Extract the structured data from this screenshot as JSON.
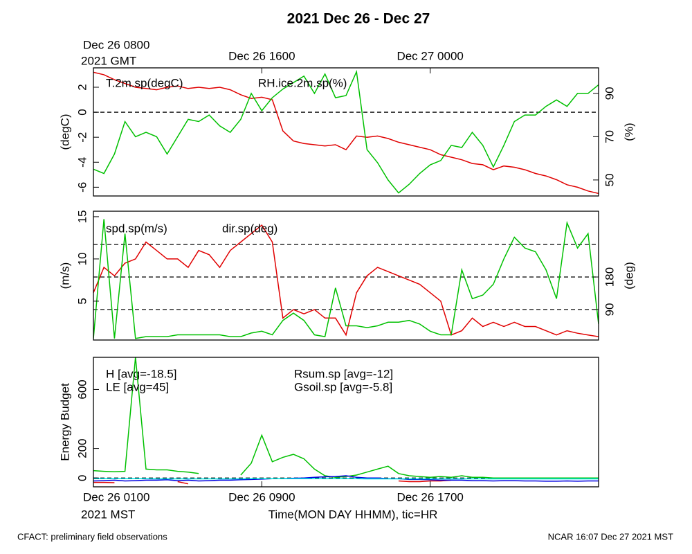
{
  "title": "2021 Dec 26 - Dec 27",
  "footer_left": "CFACT: preliminary field observations",
  "footer_right": "NCAR 16:07 Dec 27 2021 MST",
  "chart_data": [
    {
      "type": "line",
      "x": [
        0,
        0.5,
        1,
        1.5,
        2,
        2.5,
        3,
        3.5,
        4,
        4.5,
        5,
        5.5,
        6,
        6.5,
        7,
        7.5,
        8,
        8.5,
        9,
        9.5,
        10,
        10.5,
        11,
        11.5,
        12,
        12.5,
        13,
        13.5,
        14,
        14.5,
        15,
        15.5,
        16,
        16.5,
        17,
        17.5,
        18,
        18.5,
        19,
        19.5,
        20,
        20.5,
        21,
        21.5,
        22,
        22.5,
        23,
        23.5,
        24
      ],
      "xlim": [
        0,
        24
      ],
      "xticks": [
        {
          "value": 0,
          "label": "Dec 26 0800"
        },
        {
          "value": 8,
          "label": "Dec 26 1600"
        },
        {
          "value": 16,
          "label": "Dec 27 0000"
        }
      ],
      "x_sublabel": "2021 GMT",
      "ylabel": "(degC)",
      "ylim": [
        -6.7,
        3.55
      ],
      "yticks": [
        -6,
        -4,
        -2,
        0,
        2
      ],
      "y2label": "(%)",
      "y2lim": [
        42.6,
        101.8
      ],
      "y2ticks": [
        50,
        70,
        90
      ],
      "ref_lines": [
        0
      ],
      "series": [
        {
          "name": "T.2m.sp(degC)",
          "color": "#e00000",
          "values": [
            3.2,
            3.0,
            2.6,
            2.3,
            2.0,
            1.9,
            1.8,
            2.0,
            2.1,
            1.9,
            2.0,
            1.9,
            2.0,
            1.8,
            1.4,
            1.1,
            1.2,
            1.0,
            -1.5,
            -2.3,
            -2.5,
            -2.6,
            -2.7,
            -2.6,
            -3.0,
            -1.9,
            -2.0,
            -1.9,
            -2.1,
            -2.4,
            -2.6,
            -2.8,
            -3.0,
            -3.4,
            -3.6,
            -3.8,
            -4.1,
            -4.2,
            -4.6,
            -4.3,
            -4.4,
            -4.6,
            -4.9,
            -5.1,
            -5.4,
            -5.8,
            -6.0,
            -6.3,
            -6.5
          ]
        },
        {
          "name": "RH.ice.2m.sp(%)",
          "color": "#00c000",
          "axis": "y2",
          "values": [
            55,
            53,
            62,
            77,
            70,
            72,
            70,
            62,
            70,
            78,
            77,
            80,
            75,
            72,
            78,
            90,
            82,
            88,
            92,
            95,
            98,
            90,
            99,
            88,
            89,
            100,
            64,
            58,
            50,
            44,
            48,
            53,
            57,
            59,
            66,
            65,
            72,
            66,
            56,
            66,
            77,
            80,
            80,
            84,
            87,
            84,
            90,
            90,
            94
          ]
        }
      ]
    },
    {
      "type": "line",
      "x": [
        0,
        0.5,
        1,
        1.5,
        2,
        2.5,
        3,
        3.5,
        4,
        4.5,
        5,
        5.5,
        6,
        6.5,
        7,
        7.5,
        8,
        8.5,
        9,
        9.5,
        10,
        10.5,
        11,
        11.5,
        12,
        12.5,
        13,
        13.5,
        14,
        14.5,
        15,
        15.5,
        16,
        16.5,
        17,
        17.5,
        18,
        18.5,
        19,
        19.5,
        20,
        20.5,
        21,
        21.5,
        22,
        22.5,
        23,
        23.5,
        24
      ],
      "xlim": [
        0,
        24
      ],
      "ylabel": "(m/s)",
      "ylim": [
        0.4,
        15.65
      ],
      "yticks": [
        5,
        10,
        15
      ],
      "y2label": "(deg)",
      "y2lim": [
        5.7,
        362
      ],
      "y2ticks": [
        90,
        180
      ],
      "ref_lines_y2": [
        90,
        180,
        270
      ],
      "series": [
        {
          "name": "spd.sp(m/s)",
          "color": "#e00000",
          "values": [
            6,
            9,
            8,
            9.5,
            10,
            12,
            11,
            10,
            10,
            9,
            11,
            10.5,
            9,
            11,
            12,
            13,
            14,
            12,
            3,
            4,
            3.5,
            4,
            3,
            3,
            1,
            6,
            8,
            9,
            8.5,
            8,
            7.5,
            7,
            6,
            5,
            1,
            1.5,
            3,
            2,
            2.5,
            2,
            2.5,
            2,
            2,
            1.5,
            1,
            1.5,
            1.2,
            1,
            0.8
          ]
        },
        {
          "name": "dir.sp(deg)",
          "color": "#00c000",
          "axis": "y2",
          "values": [
            10,
            340,
            10,
            300,
            10,
            15,
            15,
            15,
            20,
            20,
            20,
            20,
            20,
            15,
            15,
            25,
            30,
            20,
            60,
            80,
            60,
            20,
            15,
            150,
            45,
            45,
            40,
            45,
            55,
            55,
            60,
            50,
            30,
            20,
            20,
            200,
            120,
            130,
            160,
            230,
            290,
            260,
            250,
            200,
            120,
            330,
            260,
            300,
            50
          ]
        }
      ]
    },
    {
      "type": "line",
      "x": [
        0,
        0.5,
        1,
        1.5,
        2,
        2.5,
        3,
        3.5,
        4,
        4.5,
        5,
        5.5,
        6,
        6.5,
        7,
        7.5,
        8,
        8.5,
        9,
        9.5,
        10,
        10.5,
        11,
        11.5,
        12,
        12.5,
        13,
        13.5,
        14,
        14.5,
        15,
        15.5,
        16,
        16.5,
        17,
        17.5,
        18,
        18.5,
        19,
        19.5,
        20,
        20.5,
        21,
        21.5,
        22,
        22.5,
        23,
        23.5,
        24
      ],
      "xlim": [
        0,
        24
      ],
      "xticks": [
        {
          "value": 0,
          "label": "Dec 26 0100"
        },
        {
          "value": 8,
          "label": "Dec 26 0900"
        },
        {
          "value": 16,
          "label": "Dec 26 1700"
        }
      ],
      "x_sublabel": "2021 MST",
      "xlabel": "Time(MON DAY HHMM), tic=HR",
      "ylabel": "Energy Budget",
      "ylim": [
        -60,
        818
      ],
      "yticks": [
        0,
        200,
        600
      ],
      "ref_lines": [
        0
      ],
      "series": [
        {
          "name": "H [avg=-18.5]",
          "color": "#e00000",
          "values": [
            -30,
            -30,
            -32,
            null,
            null,
            null,
            null,
            null,
            -25,
            -40,
            null,
            null,
            null,
            null,
            null,
            null,
            null,
            null,
            null,
            null,
            -5,
            -5,
            null,
            null,
            -20,
            null,
            null,
            null,
            null,
            -20,
            -25,
            -25,
            -20,
            -20,
            -15,
            null,
            null,
            null,
            null,
            null,
            null,
            null,
            null,
            null,
            null,
            null,
            null,
            null,
            null
          ]
        },
        {
          "name": "LE [avg=45]",
          "color": "#00c000",
          "values": [
            50,
            45,
            42,
            45,
            820,
            60,
            55,
            55,
            45,
            40,
            30,
            null,
            null,
            null,
            20,
            100,
            290,
            110,
            140,
            160,
            130,
            60,
            15,
            5,
            10,
            20,
            40,
            60,
            80,
            30,
            15,
            10,
            5,
            10,
            5,
            15,
            5,
            5,
            0,
            0,
            0,
            0,
            0,
            0,
            0,
            0,
            0,
            0,
            0
          ]
        },
        {
          "name": "Rsum.sp [avg=-12]",
          "color": "#0000e0",
          "values": [
            -20,
            -18,
            -15,
            -20,
            -18,
            -15,
            -15,
            -12,
            -18,
            -15,
            -20,
            -18,
            -15,
            -15,
            -12,
            -10,
            -8,
            -5,
            -5,
            -2,
            0,
            5,
            8,
            10,
            15,
            5,
            0,
            0,
            -5,
            -5,
            -10,
            -10,
            -12,
            -15,
            -15,
            -15,
            -18,
            -18,
            -20,
            -18,
            -18,
            -20,
            -20,
            -22,
            -22,
            -20,
            -22,
            -20,
            -20
          ]
        },
        {
          "name": "Gsoil.sp [avg=-5.8]",
          "color": "#00e5e5",
          "values": [
            -5,
            -5,
            -5,
            -5,
            -5,
            -5,
            -6,
            -6,
            -6,
            -6,
            -6,
            -6,
            -6,
            -6,
            -6,
            -5,
            -5,
            -5,
            -5,
            -5,
            -5,
            -5,
            -5,
            -5,
            -5,
            -5,
            -6,
            -6,
            -6,
            -6,
            -6,
            -6,
            -6,
            -6,
            -6,
            -6,
            -6,
            -6,
            -6,
            -6,
            -6,
            -6,
            -6,
            -6,
            -6,
            -6,
            -6,
            -6,
            -6
          ]
        }
      ]
    }
  ]
}
